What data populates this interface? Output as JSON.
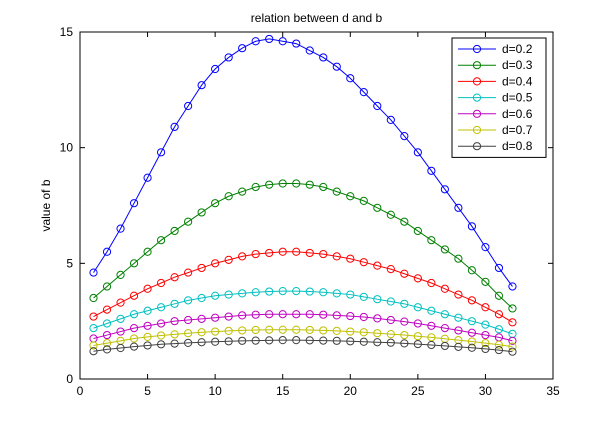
{
  "chart_data": {
    "type": "line",
    "title": "relation between d and b",
    "xlabel": "",
    "ylabel": "value of b",
    "xlim": [
      0,
      35
    ],
    "ylim": [
      0,
      15
    ],
    "xticks": [
      0,
      5,
      10,
      15,
      20,
      25,
      30,
      35
    ],
    "yticks": [
      0,
      5,
      10,
      15
    ],
    "grid": false,
    "legend_position": "top-right",
    "marker": "circle",
    "x": [
      1,
      2,
      3,
      4,
      5,
      6,
      7,
      8,
      9,
      10,
      11,
      12,
      13,
      14,
      15,
      16,
      17,
      18,
      19,
      20,
      21,
      22,
      23,
      24,
      25,
      26,
      27,
      28,
      29,
      30,
      31,
      32
    ],
    "series": [
      {
        "name": "d=0.2",
        "color": "#0000ff",
        "values": [
          4.6,
          5.5,
          6.5,
          7.6,
          8.7,
          9.8,
          10.9,
          11.8,
          12.7,
          13.4,
          13.9,
          14.3,
          14.6,
          14.7,
          14.6,
          14.5,
          14.2,
          13.9,
          13.5,
          13.0,
          12.4,
          11.8,
          11.2,
          10.5,
          9.8,
          9.0,
          8.2,
          7.4,
          6.6,
          5.7,
          4.8,
          4.0
        ]
      },
      {
        "name": "d=0.3",
        "color": "#008000",
        "values": [
          3.5,
          4.0,
          4.5,
          5.0,
          5.5,
          6.0,
          6.4,
          6.8,
          7.2,
          7.6,
          7.9,
          8.1,
          8.3,
          8.4,
          8.45,
          8.45,
          8.4,
          8.3,
          8.1,
          7.9,
          7.7,
          7.4,
          7.1,
          6.8,
          6.4,
          6.0,
          5.6,
          5.2,
          4.7,
          4.2,
          3.6,
          3.05
        ]
      },
      {
        "name": "d=0.4",
        "color": "#ff0000",
        "values": [
          2.7,
          3.0,
          3.3,
          3.6,
          3.9,
          4.15,
          4.4,
          4.6,
          4.8,
          5.0,
          5.15,
          5.3,
          5.4,
          5.45,
          5.5,
          5.5,
          5.45,
          5.4,
          5.3,
          5.2,
          5.05,
          4.9,
          4.75,
          4.55,
          4.35,
          4.15,
          3.9,
          3.65,
          3.4,
          3.1,
          2.8,
          2.45
        ]
      },
      {
        "name": "d=0.5",
        "color": "#00c0c0",
        "values": [
          2.2,
          2.4,
          2.6,
          2.8,
          2.95,
          3.1,
          3.25,
          3.4,
          3.5,
          3.6,
          3.65,
          3.7,
          3.75,
          3.78,
          3.8,
          3.8,
          3.78,
          3.75,
          3.7,
          3.65,
          3.55,
          3.45,
          3.35,
          3.25,
          3.1,
          2.95,
          2.8,
          2.65,
          2.5,
          2.35,
          2.15,
          1.95
        ]
      },
      {
        "name": "d=0.6",
        "color": "#c000c0",
        "values": [
          1.75,
          1.9,
          2.05,
          2.2,
          2.3,
          2.4,
          2.5,
          2.55,
          2.6,
          2.65,
          2.7,
          2.75,
          2.78,
          2.8,
          2.8,
          2.8,
          2.8,
          2.78,
          2.75,
          2.72,
          2.68,
          2.62,
          2.55,
          2.48,
          2.4,
          2.3,
          2.2,
          2.1,
          2.0,
          1.9,
          1.8,
          1.65
        ]
      },
      {
        "name": "d=0.7",
        "color": "#c0c000",
        "values": [
          1.45,
          1.55,
          1.65,
          1.75,
          1.82,
          1.88,
          1.93,
          1.98,
          2.02,
          2.05,
          2.08,
          2.1,
          2.12,
          2.13,
          2.13,
          2.13,
          2.12,
          2.1,
          2.08,
          2.05,
          2.02,
          1.98,
          1.94,
          1.9,
          1.85,
          1.8,
          1.74,
          1.68,
          1.62,
          1.55,
          1.48,
          1.4
        ]
      },
      {
        "name": "d=0.8",
        "color": "#404040",
        "values": [
          1.2,
          1.28,
          1.34,
          1.4,
          1.45,
          1.5,
          1.53,
          1.56,
          1.59,
          1.61,
          1.63,
          1.65,
          1.66,
          1.67,
          1.68,
          1.68,
          1.67,
          1.66,
          1.65,
          1.63,
          1.61,
          1.59,
          1.57,
          1.54,
          1.51,
          1.47,
          1.43,
          1.39,
          1.35,
          1.3,
          1.25,
          1.18
        ]
      }
    ]
  }
}
